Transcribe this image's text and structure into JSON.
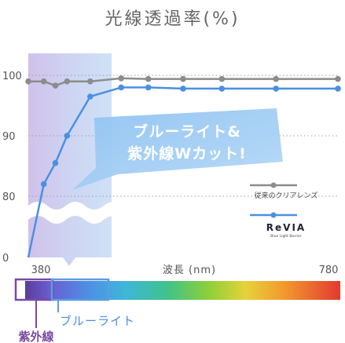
{
  "title": "光線透過率(%)",
  "chart_data": {
    "type": "line",
    "title": "光線透過率(%)",
    "xlabel": "波長 (nm)",
    "ylabel": "",
    "y_ticks": [
      "0",
      "80",
      "90",
      "100"
    ],
    "x_ticks": [
      "380",
      "780"
    ],
    "xlim": [
      380,
      780
    ],
    "ylim_display": [
      0,
      100
    ],
    "y_axis_break": true,
    "grid": "horizontal dotted",
    "series": [
      {
        "name": "従来のクリアレンズ",
        "color": "#8c8c8c",
        "x": [
          380,
          400,
          415,
          430,
          460,
          500,
          535,
          580,
          630,
          700,
          780
        ],
        "y": [
          99,
          99,
          98.3,
          99,
          99,
          99.5,
          99.4,
          99.4,
          99.4,
          99.4,
          99.4
        ]
      },
      {
        "name": "ReVIA",
        "color": "#4a90e2",
        "x": [
          380,
          400,
          415,
          430,
          460,
          500,
          535,
          580,
          630,
          700,
          780
        ],
        "y": [
          0,
          82,
          85.5,
          90,
          96.5,
          98,
          98,
          97.8,
          97.8,
          97.8,
          97.8
        ]
      }
    ],
    "annotations": [
      "ブルーライト&",
      "紫外線Wカット!"
    ],
    "bands": [
      {
        "name": "紫外線",
        "color": "#7a4aa0"
      },
      {
        "name": "ブルーライト",
        "color": "#4a8fdc"
      }
    ],
    "legend": {
      "placement": "bottom-right",
      "entries": [
        "従来のクリアレンズ",
        "ReVIA"
      ],
      "revia_tagline": "Blue Light Barrier"
    }
  }
}
